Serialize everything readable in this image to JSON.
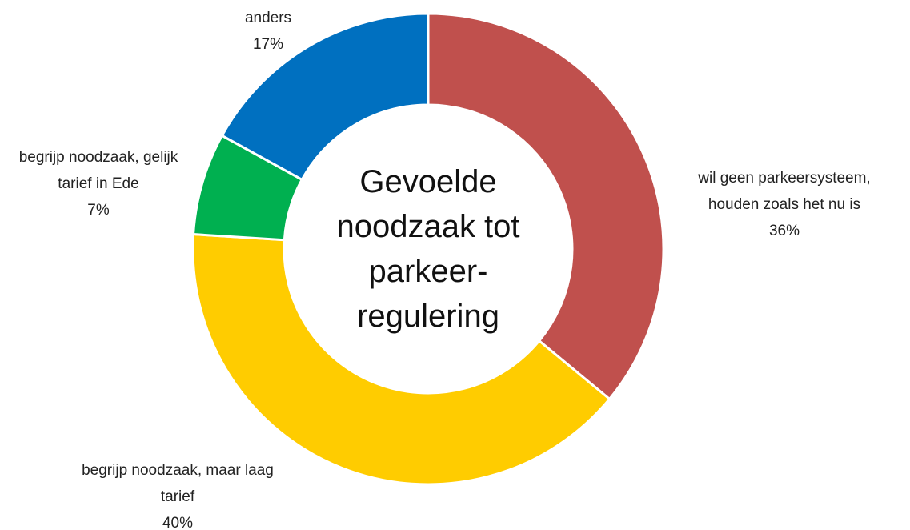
{
  "chart_data": {
    "type": "donut",
    "title": "Gevoelde noodzaak tot parkeer-regulering",
    "categories": [
      "wil geen parkeersysteem, houden zoals het nu is",
      "begrijp noodzaak, maar laag tarief",
      "begrijp noodzaak, gelijk tarief in Ede",
      "anders"
    ],
    "values": [
      36,
      40,
      7,
      17
    ],
    "value_labels": [
      "36%",
      "40%",
      "7%",
      "17%"
    ],
    "colors": [
      "#c0504d",
      "#ffcc00",
      "#00b050",
      "#0070c0"
    ]
  }
}
